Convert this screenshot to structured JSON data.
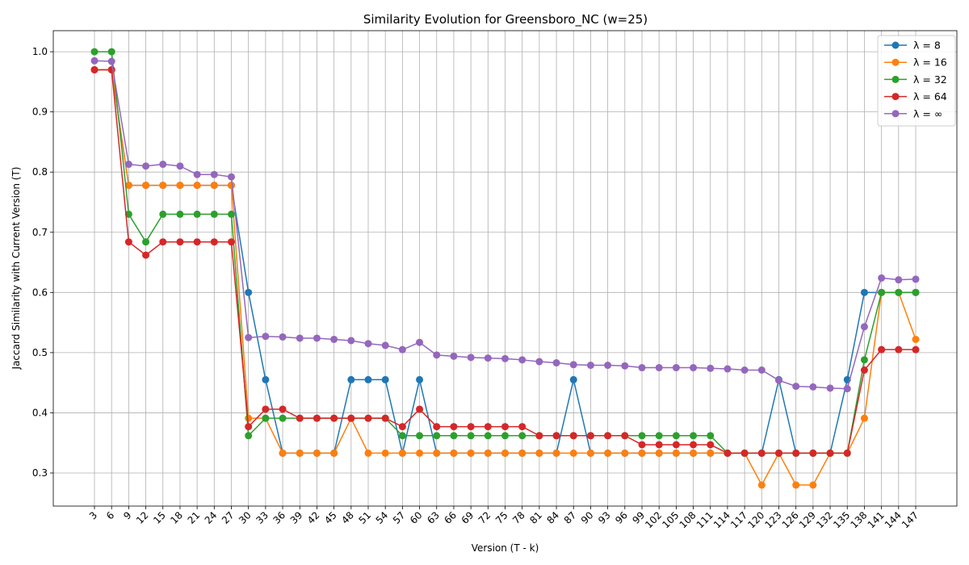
{
  "chart_data": {
    "type": "line",
    "title": "Similarity Evolution for Greensboro_NC (w=25)",
    "xlabel": "Version (T - k)",
    "ylabel": "Jaccard Similarity with Current Version (T)",
    "x": [
      3,
      6,
      9,
      12,
      15,
      18,
      21,
      24,
      27,
      30,
      33,
      36,
      39,
      42,
      45,
      48,
      51,
      54,
      57,
      60,
      63,
      66,
      69,
      72,
      75,
      78,
      81,
      84,
      87,
      90,
      93,
      96,
      99,
      102,
      105,
      108,
      111,
      114,
      117,
      120,
      123,
      126,
      129,
      132,
      135,
      138,
      141,
      144,
      147
    ],
    "ylim": [
      0.245,
      1.035
    ],
    "yticks": [
      0.3,
      0.4,
      0.5,
      0.6,
      0.7,
      0.8,
      0.9,
      1.0
    ],
    "ytick_labels": [
      "0.3",
      "0.4",
      "0.5",
      "0.6",
      "0.7",
      "0.8",
      "0.9",
      "1.0"
    ],
    "grid": true,
    "legend_position": "top-right",
    "series": [
      {
        "name": "λ = 8",
        "color": "#1f77b4",
        "values": [
          0.97,
          0.97,
          0.778,
          0.778,
          0.778,
          0.778,
          0.778,
          0.778,
          0.778,
          0.6,
          0.455,
          0.333,
          0.333,
          0.333,
          0.333,
          0.455,
          0.455,
          0.455,
          0.333,
          0.455,
          0.333,
          0.333,
          0.333,
          0.333,
          0.333,
          0.333,
          0.333,
          0.333,
          0.455,
          0.333,
          0.333,
          0.333,
          0.333,
          0.333,
          0.333,
          0.333,
          0.333,
          0.333,
          0.333,
          0.333,
          0.455,
          0.333,
          0.333,
          0.333,
          0.455,
          0.6,
          0.6,
          0.6,
          0.6
        ]
      },
      {
        "name": "λ = 16",
        "color": "#ff7f0e",
        "values": [
          0.97,
          0.97,
          0.778,
          0.778,
          0.778,
          0.778,
          0.778,
          0.778,
          0.778,
          0.391,
          0.391,
          0.333,
          0.333,
          0.333,
          0.333,
          0.391,
          0.333,
          0.333,
          0.333,
          0.333,
          0.333,
          0.333,
          0.333,
          0.333,
          0.333,
          0.333,
          0.333,
          0.333,
          0.333,
          0.333,
          0.333,
          0.333,
          0.333,
          0.333,
          0.333,
          0.333,
          0.333,
          0.333,
          0.333,
          0.28,
          0.333,
          0.28,
          0.28,
          0.333,
          0.333,
          0.391,
          0.6,
          0.6,
          0.522
        ]
      },
      {
        "name": "λ = 32",
        "color": "#2ca02c",
        "values": [
          1.0,
          1.0,
          0.73,
          0.684,
          0.73,
          0.73,
          0.73,
          0.73,
          0.73,
          0.362,
          0.391,
          0.391,
          0.391,
          0.391,
          0.391,
          0.391,
          0.391,
          0.391,
          0.362,
          0.362,
          0.362,
          0.362,
          0.362,
          0.362,
          0.362,
          0.362,
          0.362,
          0.362,
          0.362,
          0.362,
          0.362,
          0.362,
          0.362,
          0.362,
          0.362,
          0.362,
          0.362,
          0.333,
          0.333,
          0.333,
          0.333,
          0.333,
          0.333,
          0.333,
          0.333,
          0.488,
          0.6,
          0.6,
          0.6
        ]
      },
      {
        "name": "λ = 64",
        "color": "#d62728",
        "values": [
          0.97,
          0.97,
          0.684,
          0.662,
          0.684,
          0.684,
          0.684,
          0.684,
          0.684,
          0.377,
          0.406,
          0.406,
          0.391,
          0.391,
          0.391,
          0.391,
          0.391,
          0.391,
          0.377,
          0.406,
          0.377,
          0.377,
          0.377,
          0.377,
          0.377,
          0.377,
          0.362,
          0.362,
          0.362,
          0.362,
          0.362,
          0.362,
          0.347,
          0.347,
          0.347,
          0.347,
          0.347,
          0.333,
          0.333,
          0.333,
          0.333,
          0.333,
          0.333,
          0.333,
          0.333,
          0.471,
          0.505,
          0.505,
          0.505
        ]
      },
      {
        "name": "λ = ∞",
        "color": "#9467bd",
        "values": [
          0.985,
          0.984,
          0.813,
          0.81,
          0.813,
          0.81,
          0.796,
          0.796,
          0.792,
          0.525,
          0.527,
          0.526,
          0.524,
          0.524,
          0.522,
          0.52,
          0.515,
          0.512,
          0.505,
          0.517,
          0.496,
          0.494,
          0.492,
          0.491,
          0.49,
          0.488,
          0.485,
          0.483,
          0.48,
          0.479,
          0.479,
          0.478,
          0.475,
          0.475,
          0.475,
          0.475,
          0.474,
          0.473,
          0.471,
          0.471,
          0.454,
          0.444,
          0.443,
          0.441,
          0.44,
          0.543,
          0.624,
          0.621,
          0.622
        ]
      }
    ]
  }
}
